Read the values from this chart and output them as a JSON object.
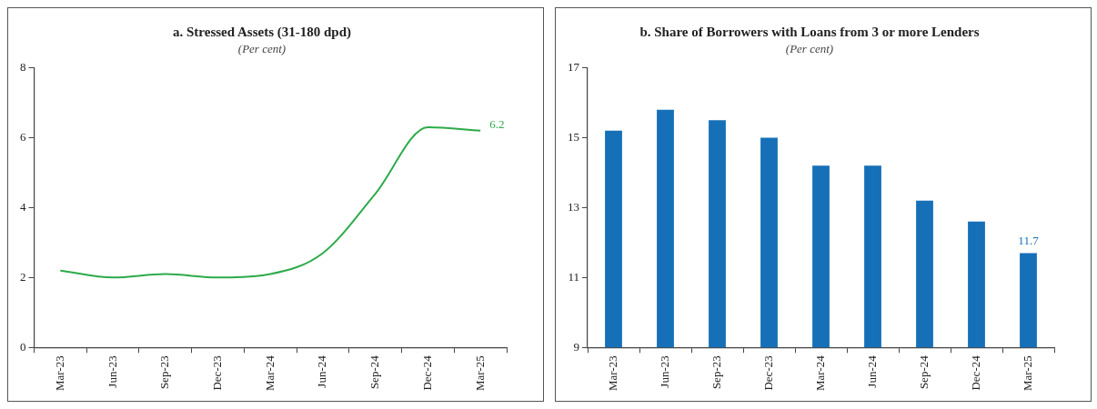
{
  "chart_data": [
    {
      "type": "line",
      "title": "a. Stressed Assets (31-180 dpd)",
      "subtitle": "(Per cent)",
      "categories": [
        "Mar-23",
        "Jun-23",
        "Sep-23",
        "Dec-23",
        "Mar-24",
        "Jun-24",
        "Sep-24",
        "Dec-24",
        "Mar-25"
      ],
      "series": [
        {
          "color": "#2eaa4a",
          "values": [
            2.2,
            2.0,
            2.1,
            2.0,
            2.1,
            2.7,
            4.4,
            6.3,
            6.2
          ],
          "value_labels": [
            null,
            null,
            null,
            null,
            null,
            null,
            null,
            null,
            "6.2"
          ]
        }
      ],
      "ylim": [
        0,
        8
      ],
      "yticks": [
        0,
        2,
        4,
        6,
        8
      ],
      "legend": false,
      "marker": "none"
    },
    {
      "type": "bar",
      "title": "b. Share of Borrowers with Loans from 3 or more Lenders",
      "subtitle": "(Per cent)",
      "categories": [
        "Mar-23",
        "Jun-23",
        "Sep-23",
        "Dec-23",
        "Mar-24",
        "Jun-24",
        "Sep-24",
        "Dec-24",
        "Mar-25"
      ],
      "series": [
        {
          "color": "#1670b8",
          "values": [
            15.2,
            15.8,
            15.5,
            15.0,
            14.2,
            14.2,
            13.2,
            12.6,
            11.7
          ],
          "value_labels": [
            null,
            null,
            null,
            null,
            null,
            null,
            null,
            null,
            "11.7"
          ]
        }
      ],
      "ylim": [
        9,
        17
      ],
      "yticks": [
        9,
        11,
        13,
        15,
        17
      ],
      "legend": false
    }
  ]
}
